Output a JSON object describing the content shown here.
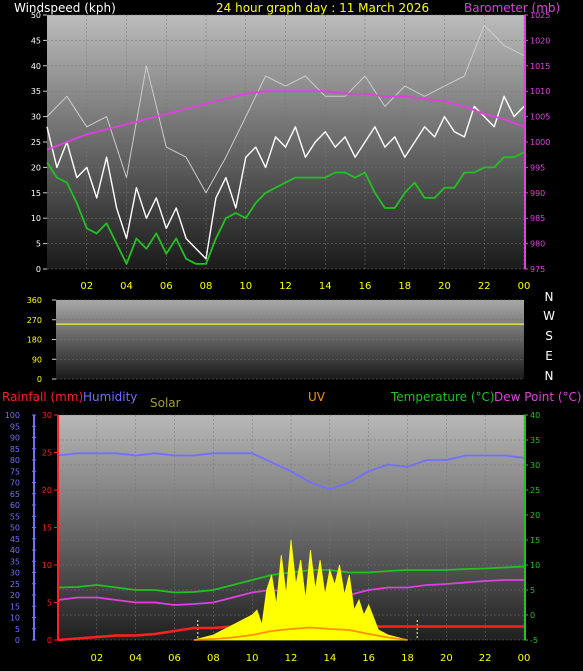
{
  "header": {
    "windspeed_label": "Windspeed (kph)",
    "title": "24 hour graph day : 11 March 2026",
    "barometer_label": "Barometer (mb)"
  },
  "lower_header": {
    "rainfall_label": "Rainfall (mm)",
    "humidity_label": "Humidity",
    "solar_label": "Solar",
    "uv_label": "UV",
    "temperature_label": "Temperature (°C)",
    "dewpoint_label": "Dew Point (°C)"
  },
  "compass": [
    "N",
    "W",
    "S",
    "E",
    "N"
  ],
  "colors": {
    "windspeed": "#ffffff",
    "gust": "#cccccc",
    "avg_wind": "#22c022",
    "barometer": "#e040e0",
    "direction": "#e0e040",
    "humidity": "#7070ff",
    "temperature": "#22c022",
    "dewpoint": "#e040e0",
    "rainfall": "#ff2020",
    "solar": "#ffff00",
    "uv": "#ff9000"
  },
  "chart_data": [
    {
      "type": "line",
      "name": "wind-barometer",
      "x_ticks": [
        "02",
        "04",
        "06",
        "08",
        "10",
        "12",
        "14",
        "16",
        "18",
        "20",
        "22",
        "00"
      ],
      "y_left_ticks": [
        "0",
        "5",
        "10",
        "15",
        "20",
        "25",
        "30",
        "35",
        "40",
        "45",
        "50"
      ],
      "y_right_ticks": [
        "975",
        "980",
        "985",
        "990",
        "995",
        "1000",
        "1005",
        "1010",
        "1015",
        "1020",
        "1025"
      ],
      "ylim_left": [
        0,
        50
      ],
      "ylim_right": [
        975,
        1025
      ],
      "xlim": [
        0,
        24
      ],
      "series": [
        {
          "key": "windspeed",
          "x": [
            0,
            0.5,
            1,
            1.5,
            2,
            2.5,
            3,
            3.5,
            4,
            4.5,
            5,
            5.5,
            6,
            6.5,
            7,
            7.5,
            8,
            8.5,
            9,
            9.5,
            10,
            10.5,
            11,
            11.5,
            12,
            12.5,
            13,
            13.5,
            14,
            14.5,
            15,
            15.5,
            16,
            16.5,
            17,
            17.5,
            18,
            18.5,
            19,
            19.5,
            20,
            20.5,
            21,
            21.5,
            22,
            22.5,
            23,
            23.5,
            24
          ],
          "values": [
            28,
            20,
            25,
            18,
            20,
            14,
            22,
            12,
            6,
            16,
            10,
            14,
            8,
            12,
            6,
            4,
            2,
            14,
            18,
            12,
            22,
            24,
            20,
            26,
            24,
            28,
            22,
            25,
            27,
            24,
            26,
            22,
            25,
            28,
            24,
            26,
            22,
            25,
            28,
            26,
            30,
            27,
            26,
            32,
            30,
            28,
            34,
            30,
            32
          ]
        },
        {
          "key": "gust",
          "x": [
            0,
            1,
            2,
            3,
            4,
            5,
            6,
            7,
            8,
            9,
            10,
            11,
            12,
            13,
            14,
            15,
            16,
            17,
            18,
            19,
            20,
            21,
            22,
            23,
            24
          ],
          "values": [
            30,
            34,
            28,
            30,
            18,
            40,
            24,
            22,
            15,
            22,
            30,
            38,
            36,
            38,
            34,
            34,
            38,
            32,
            36,
            34,
            36,
            38,
            48,
            44,
            42
          ]
        },
        {
          "key": "avg_wind",
          "x": [
            0,
            0.5,
            1,
            1.5,
            2,
            2.5,
            3,
            3.5,
            4,
            4.5,
            5,
            5.5,
            6,
            6.5,
            7,
            7.5,
            8,
            8.5,
            9,
            9.5,
            10,
            10.5,
            11,
            11.5,
            12,
            12.5,
            13,
            13.5,
            14,
            14.5,
            15,
            15.5,
            16,
            16.5,
            17,
            17.5,
            18,
            18.5,
            19,
            19.5,
            20,
            20.5,
            21,
            21.5,
            22,
            22.5,
            23,
            23.5,
            24
          ],
          "values": [
            21,
            18,
            17,
            13,
            8,
            7,
            9,
            5,
            1,
            6,
            4,
            7,
            3,
            6,
            2,
            1,
            1,
            6,
            10,
            11,
            10,
            13,
            15,
            16,
            17,
            18,
            18,
            18,
            18,
            19,
            19,
            18,
            19,
            15,
            12,
            12,
            15,
            17,
            14,
            14,
            16,
            16,
            19,
            19,
            20,
            20,
            22,
            22,
            23
          ]
        },
        {
          "key": "barometer",
          "axis": "right",
          "x": [
            0,
            1,
            2,
            3,
            4,
            5,
            6,
            7,
            8,
            9,
            10,
            11,
            12,
            13,
            14,
            15,
            16,
            17,
            18,
            19,
            20,
            21,
            22,
            23,
            24
          ],
          "values": [
            998.5,
            1000,
            1001.5,
            1002.5,
            1003.5,
            1004.5,
            1005.5,
            1006.5,
            1007.5,
            1008.5,
            1009.5,
            1010,
            1010,
            1010,
            1010,
            1009.5,
            1009.5,
            1009,
            1009,
            1008.5,
            1008,
            1007,
            1005.5,
            1004.5,
            1003
          ]
        }
      ]
    },
    {
      "type": "line",
      "name": "wind-direction",
      "x_ticks": [
        "02",
        "04",
        "06",
        "08",
        "10",
        "12",
        "14",
        "16",
        "18",
        "20",
        "22",
        "00"
      ],
      "y_ticks": [
        "0",
        "90",
        "180",
        "270",
        "360"
      ],
      "ylim": [
        0,
        360
      ],
      "xlim": [
        0,
        24
      ],
      "series": [
        {
          "key": "direction",
          "x": [
            0,
            24
          ],
          "values": [
            250,
            250
          ]
        }
      ]
    },
    {
      "type": "line",
      "name": "temperature-rain-solar",
      "x_ticks": [
        "02",
        "04",
        "06",
        "08",
        "10",
        "12",
        "14",
        "16",
        "18",
        "20",
        "22",
        "00"
      ],
      "humidity_ticks": [
        "0",
        "5",
        "10",
        "15",
        "20",
        "25",
        "30",
        "35",
        "40",
        "45",
        "50",
        "55",
        "60",
        "65",
        "70",
        "75",
        "80",
        "85",
        "90",
        "95",
        "100"
      ],
      "rain_ticks": [
        "0",
        "5",
        "10",
        "15",
        "20",
        "25",
        "30"
      ],
      "temp_ticks": [
        "-5",
        "0",
        "5",
        "10",
        "15",
        "20",
        "25",
        "30",
        "35",
        "40"
      ],
      "ylim_humidity": [
        0,
        100
      ],
      "ylim_rain": [
        0,
        30
      ],
      "ylim_temp": [
        -5,
        40
      ],
      "xlim": [
        0,
        24
      ],
      "series": [
        {
          "key": "humidity",
          "axis": "humidity",
          "x": [
            0,
            1,
            2,
            3,
            4,
            5,
            6,
            7,
            8,
            9,
            10,
            11,
            12,
            13,
            14,
            15,
            16,
            17,
            18,
            19,
            20,
            21,
            22,
            23,
            24
          ],
          "values": [
            82,
            83,
            83,
            83,
            82,
            83,
            82,
            82,
            83,
            83,
            83,
            79,
            75,
            70,
            67,
            70,
            75,
            78,
            77,
            80,
            80,
            82,
            82,
            82,
            81
          ]
        },
        {
          "key": "temperature",
          "axis": "temp",
          "x": [
            0,
            1,
            2,
            3,
            4,
            5,
            6,
            7,
            8,
            9,
            10,
            11,
            12,
            13,
            14,
            15,
            16,
            17,
            18,
            19,
            20,
            21,
            22,
            23,
            24
          ],
          "values": [
            5.5,
            5.6,
            6,
            5.5,
            5,
            5,
            4.5,
            4.6,
            5,
            6,
            7,
            8,
            8.5,
            9,
            9,
            8.5,
            8.5,
            8.8,
            9,
            9,
            9,
            9.2,
            9.3,
            9.5,
            9.7
          ]
        },
        {
          "key": "dewpoint",
          "axis": "temp",
          "x": [
            0,
            1,
            2,
            3,
            4,
            5,
            6,
            7,
            8,
            9,
            10,
            11,
            12,
            13,
            14,
            15,
            16,
            17,
            18,
            19,
            20,
            21,
            22,
            23,
            24
          ],
          "values": [
            3,
            3.5,
            3.5,
            3,
            2.5,
            2.5,
            2,
            2.2,
            2.5,
            3.5,
            4.5,
            5,
            4.5,
            4,
            4,
            4,
            5,
            5.5,
            5.5,
            6,
            6.2,
            6.5,
            6.8,
            7,
            7
          ]
        },
        {
          "key": "rainfall",
          "axis": "rain",
          "x": [
            0,
            1,
            2,
            3,
            4,
            5,
            6,
            7,
            8,
            9,
            10,
            11,
            12,
            13,
            14,
            15,
            16,
            17,
            18,
            19,
            20,
            21,
            22,
            23,
            24
          ],
          "values": [
            0,
            0.2,
            0.4,
            0.6,
            0.6,
            0.8,
            1.2,
            1.6,
            1.6,
            1.8,
            1.8,
            1.8,
            1.8,
            1.8,
            1.8,
            1.8,
            1.8,
            1.8,
            1.8,
            1.8,
            1.8,
            1.8,
            1.8,
            1.8,
            1.8
          ]
        },
        {
          "key": "solar",
          "axis": "temp",
          "x": [
            7,
            7.5,
            8,
            8.5,
            9,
            9.5,
            10,
            10.25,
            10.5,
            10.75,
            11,
            11.25,
            11.5,
            11.75,
            12,
            12.25,
            12.5,
            12.75,
            13,
            13.25,
            13.5,
            13.75,
            14,
            14.25,
            14.5,
            14.75,
            15,
            15.25,
            15.5,
            15.75,
            16,
            16.5,
            17,
            17.5,
            18
          ],
          "values": [
            -5,
            -4.5,
            -4,
            -3,
            -2,
            -1,
            0,
            1,
            -2,
            5,
            8,
            2,
            12,
            4,
            15,
            6,
            11,
            3,
            13,
            5,
            11,
            4,
            9,
            6,
            10,
            4,
            8,
            1,
            3,
            0,
            2,
            -3,
            -4,
            -4.5,
            -5
          ]
        },
        {
          "key": "uv",
          "axis": "temp",
          "x": [
            7,
            8,
            9,
            10,
            11,
            12,
            13,
            14,
            15,
            16,
            17,
            18
          ],
          "values": [
            -5,
            -4.8,
            -4.5,
            -4,
            -3.2,
            -2.8,
            -2.5,
            -2.8,
            -3,
            -3.8,
            -4.5,
            -5
          ]
        }
      ],
      "markers_x": [
        7.2,
        18.5
      ]
    }
  ]
}
